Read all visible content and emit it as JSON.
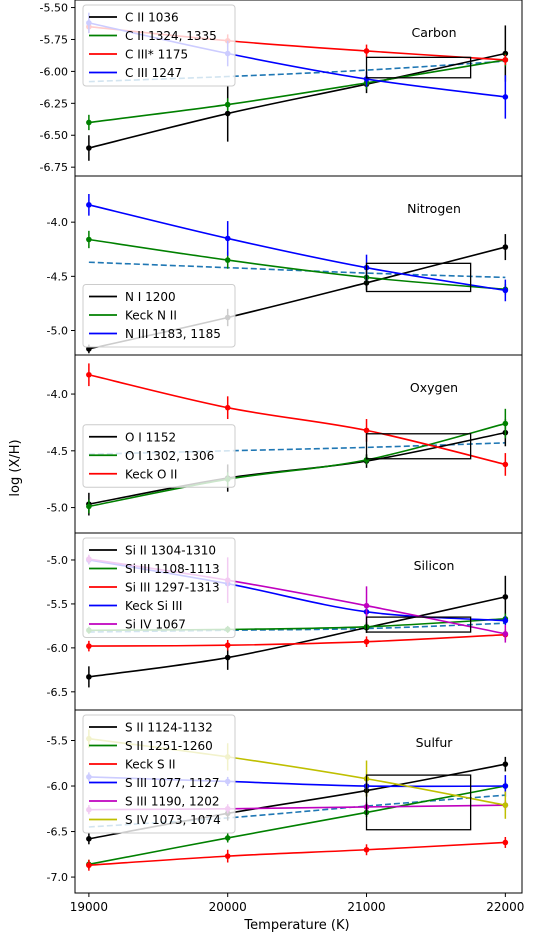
{
  "figure": {
    "xlabel": "Temperature (K)",
    "ylabel": "log (X/H)"
  },
  "chart_data": [
    {
      "type": "line",
      "title": "Carbon",
      "xticks": [
        19000,
        20000,
        21000,
        22000
      ],
      "xlim": [
        18900,
        22120
      ],
      "ylim": [
        -6.78,
        -5.48
      ],
      "yticks": [
        -6.75,
        -6.5,
        -6.25,
        -6.0,
        -5.75,
        -5.5
      ],
      "ytick_labels": [
        "-6.75",
        "-6.50",
        "-6.25",
        "-6.00",
        "-5.75",
        "-5.50"
      ],
      "legend_position": "upper-left",
      "box": {
        "x": [
          21000,
          21750
        ],
        "y": [
          -6.05,
          -5.89
        ]
      },
      "dashed": {
        "color": "#1f77b4",
        "x": [
          19000,
          20000,
          21000,
          22000
        ],
        "y": [
          -6.08,
          -6.04,
          -5.99,
          -5.92
        ]
      },
      "series": [
        {
          "name": "C II 1036",
          "color": "#000000",
          "x": [
            19000,
            20000,
            21000,
            22000
          ],
          "y": [
            -6.6,
            -6.33,
            -6.1,
            -5.86
          ],
          "err": [
            0.1,
            0.22,
            0.07,
            0.22
          ]
        },
        {
          "name": "C II 1324, 1335",
          "color": "#008000",
          "x": [
            19000,
            20000,
            21000,
            22000
          ],
          "y": [
            -6.4,
            -6.26,
            -6.09,
            -5.91
          ],
          "err": [
            0.06,
            0.05,
            0.05,
            0.05
          ]
        },
        {
          "name": "C III* 1175",
          "color": "#ff0000",
          "x": [
            19000,
            20000,
            21000,
            22000
          ],
          "y": [
            -5.65,
            -5.76,
            -5.84,
            -5.91
          ],
          "err": [
            0.05,
            0.05,
            0.05,
            0.04
          ]
        },
        {
          "name": "C III 1247",
          "color": "#0000ff",
          "x": [
            19000,
            20000,
            21000,
            22000
          ],
          "y": [
            -5.62,
            -5.86,
            -6.06,
            -6.2
          ],
          "err": [
            0.08,
            0.1,
            0.06,
            0.17
          ]
        }
      ]
    },
    {
      "type": "line",
      "title": "Nitrogen",
      "xticks": [
        19000,
        20000,
        21000,
        22000
      ],
      "xlim": [
        18900,
        22120
      ],
      "ylim": [
        -5.18,
        -3.62
      ],
      "yticks": [
        -5.0,
        -4.5,
        -4.0
      ],
      "ytick_labels": [
        "-5.0",
        "-4.5",
        "-4.0"
      ],
      "legend_position": "lower-left",
      "box": {
        "x": [
          21000,
          21750
        ],
        "y": [
          -4.64,
          -4.38
        ]
      },
      "dashed": {
        "color": "#1f77b4",
        "x": [
          19000,
          20000,
          21000,
          22000
        ],
        "y": [
          -4.37,
          -4.42,
          -4.47,
          -4.51
        ]
      },
      "series": [
        {
          "name": "N I 1200",
          "color": "#000000",
          "x": [
            19000,
            20000,
            21000,
            22000
          ],
          "y": [
            -5.17,
            -4.88,
            -4.56,
            -4.23
          ],
          "err": [
            0.04,
            0.08,
            0.07,
            0.12
          ]
        },
        {
          "name": "Keck N II",
          "color": "#008000",
          "x": [
            19000,
            20000,
            21000,
            22000
          ],
          "y": [
            -4.16,
            -4.35,
            -4.51,
            -4.62
          ],
          "err": [
            0.08,
            0.08,
            0.06,
            0.05
          ]
        },
        {
          "name": "N III 1183, 1185",
          "color": "#0000ff",
          "x": [
            19000,
            20000,
            21000,
            22000
          ],
          "y": [
            -3.84,
            -4.15,
            -4.42,
            -4.63
          ],
          "err": [
            0.1,
            0.16,
            0.12,
            0.1
          ]
        }
      ]
    },
    {
      "type": "line",
      "title": "Oxygen",
      "xticks": [
        19000,
        20000,
        21000,
        22000
      ],
      "xlim": [
        18900,
        22120
      ],
      "ylim": [
        -5.18,
        -3.7
      ],
      "yticks": [
        -5.0,
        -4.5,
        -4.0
      ],
      "ytick_labels": [
        "-5.0",
        "-4.5",
        "-4.0"
      ],
      "legend_position": "center-left",
      "box": {
        "x": [
          21000,
          21750
        ],
        "y": [
          -4.57,
          -4.35
        ]
      },
      "dashed": {
        "color": "#1f77b4",
        "x": [
          19000,
          20000,
          21000,
          22000
        ],
        "y": [
          -4.53,
          -4.5,
          -4.47,
          -4.43
        ]
      },
      "series": [
        {
          "name": "O I 1152",
          "color": "#000000",
          "x": [
            19000,
            20000,
            21000,
            22000
          ],
          "y": [
            -4.97,
            -4.74,
            -4.59,
            -4.34
          ],
          "err": [
            0.1,
            0.12,
            0.06,
            0.12
          ]
        },
        {
          "name": "O I 1302, 1306",
          "color": "#008000",
          "x": [
            19000,
            20000,
            21000,
            22000
          ],
          "y": [
            -4.99,
            -4.75,
            -4.58,
            -4.26
          ],
          "err": [
            0.06,
            0.06,
            0.04,
            0.13
          ]
        },
        {
          "name": "Keck O II",
          "color": "#ff0000",
          "x": [
            19000,
            20000,
            21000,
            22000
          ],
          "y": [
            -3.83,
            -4.12,
            -4.32,
            -4.62
          ],
          "err": [
            0.1,
            0.1,
            0.1,
            0.1
          ]
        }
      ]
    },
    {
      "type": "line",
      "title": "Silicon",
      "xticks": [
        19000,
        20000,
        21000,
        22000
      ],
      "xlim": [
        18900,
        22120
      ],
      "ylim": [
        -6.65,
        -4.75
      ],
      "yticks": [
        -6.5,
        -6.0,
        -5.5,
        -5.0
      ],
      "ytick_labels": [
        "-6.5",
        "-6.0",
        "-5.5",
        "-5.0"
      ],
      "legend_position": "upper-left",
      "box": {
        "x": [
          21000,
          21750
        ],
        "y": [
          -5.82,
          -5.65
        ]
      },
      "dashed": {
        "color": "#1f77b4",
        "x": [
          19000,
          20000,
          21000,
          22000
        ],
        "y": [
          -5.82,
          -5.8,
          -5.78,
          -5.72
        ]
      },
      "series": [
        {
          "name": "Si II 1304-1310",
          "color": "#000000",
          "x": [
            19000,
            20000,
            21000,
            22000
          ],
          "y": [
            -6.33,
            -6.11,
            -5.77,
            -5.42
          ],
          "err": [
            0.12,
            0.14,
            0.06,
            0.24
          ]
        },
        {
          "name": "Si III 1108-1113",
          "color": "#008000",
          "x": [
            19000,
            20000,
            21000,
            22000
          ],
          "y": [
            -5.8,
            -5.79,
            -5.76,
            -5.67
          ],
          "err": [
            0.04,
            0.04,
            0.04,
            0.06
          ]
        },
        {
          "name": "Si III 1297-1313",
          "color": "#ff0000",
          "x": [
            19000,
            20000,
            21000,
            22000
          ],
          "y": [
            -5.98,
            -5.97,
            -5.93,
            -5.85
          ],
          "err": [
            0.06,
            0.06,
            0.06,
            0.06
          ]
        },
        {
          "name": "Keck Si III",
          "color": "#0000ff",
          "x": [
            19000,
            20000,
            21000,
            22000
          ],
          "y": [
            -5.0,
            -5.27,
            -5.59,
            -5.69
          ],
          "err": [
            0.05,
            0.05,
            0.05,
            0.05
          ]
        },
        {
          "name": "Si IV 1067",
          "color": "#bf00bf",
          "x": [
            19000,
            20000,
            21000,
            22000
          ],
          "y": [
            -4.99,
            -5.23,
            -5.52,
            -5.84
          ],
          "err": [
            0.05,
            0.26,
            0.22,
            0.1
          ]
        }
      ]
    },
    {
      "type": "line",
      "title": "Sulfur",
      "xticks": [
        19000,
        20000,
        21000,
        22000
      ],
      "xlim": [
        18900,
        22120
      ],
      "ylim": [
        -7.12,
        -5.22
      ],
      "yticks": [
        -7.0,
        -6.5,
        -6.0,
        -5.5
      ],
      "ytick_labels": [
        "-7.0",
        "-6.5",
        "-6.0",
        "-5.5"
      ],
      "legend_position": "upper-left",
      "box": {
        "x": [
          21000,
          21750
        ],
        "y": [
          -6.48,
          -5.88
        ]
      },
      "dashed": {
        "color": "#1f77b4",
        "x": [
          19000,
          20000,
          21000,
          22000
        ],
        "y": [
          -6.45,
          -6.35,
          -6.22,
          -6.1
        ]
      },
      "series": [
        {
          "name": "S II 1124-1132",
          "color": "#000000",
          "x": [
            19000,
            20000,
            21000,
            22000
          ],
          "y": [
            -6.58,
            -6.3,
            -6.05,
            -5.76
          ],
          "err": [
            0.06,
            0.08,
            0.06,
            0.08
          ]
        },
        {
          "name": "S II 1251-1260",
          "color": "#008000",
          "x": [
            19000,
            20000,
            21000,
            22000
          ],
          "y": [
            -6.86,
            -6.57,
            -6.29,
            -6.0
          ],
          "err": [
            0.05,
            0.05,
            0.05,
            0.05
          ]
        },
        {
          "name": "Keck S II",
          "color": "#ff0000",
          "x": [
            19000,
            20000,
            21000,
            22000
          ],
          "y": [
            -6.87,
            -6.77,
            -6.7,
            -6.62
          ],
          "err": [
            0.06,
            0.07,
            0.06,
            0.06
          ]
        },
        {
          "name": "S III 1077, 1127",
          "color": "#0000ff",
          "x": [
            19000,
            20000,
            21000,
            22000
          ],
          "y": [
            -5.9,
            -5.95,
            -6.0,
            -6.0
          ],
          "err": [
            0.05,
            0.05,
            0.05,
            0.12
          ]
        },
        {
          "name": "S III 1190, 1202",
          "color": "#bf00bf",
          "x": [
            19000,
            20000,
            21000,
            22000
          ],
          "y": [
            -6.26,
            -6.25,
            -6.23,
            -6.21
          ],
          "err": [
            0.05,
            0.05,
            0.05,
            0.05
          ]
        },
        {
          "name": "S IV 1073, 1074",
          "color": "#bfbf00",
          "x": [
            19000,
            20000,
            21000,
            22000
          ],
          "y": [
            -5.48,
            -5.68,
            -5.92,
            -6.21
          ],
          "err": [
            0.1,
            0.15,
            0.2,
            0.15
          ]
        }
      ]
    }
  ]
}
